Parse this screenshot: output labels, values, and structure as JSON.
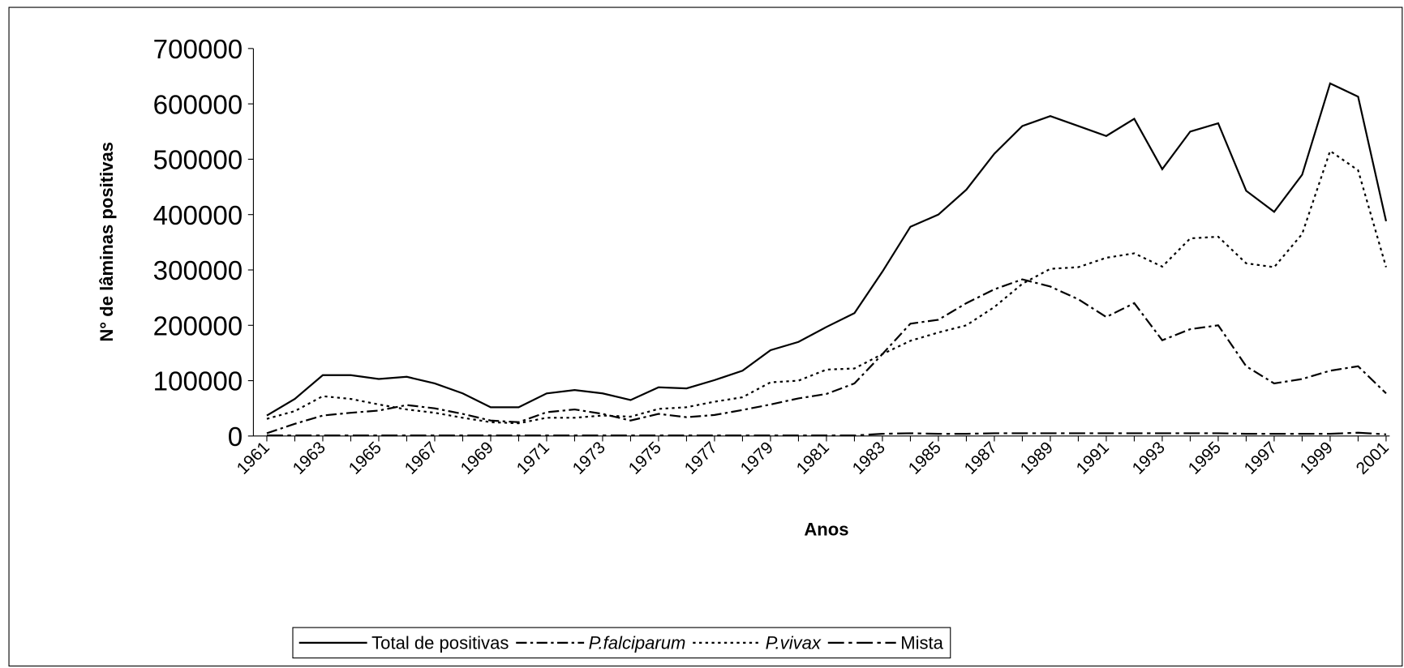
{
  "chart_data": {
    "type": "line",
    "x_label": "Anos",
    "y_label": "N° de lâminas positivas",
    "categories": [
      "1961",
      null,
      "1963",
      null,
      "1965",
      null,
      "1967",
      null,
      "1969",
      null,
      "1971",
      null,
      "1973",
      null,
      "1975",
      null,
      "1977",
      null,
      "1979",
      null,
      "1981",
      null,
      "1983",
      null,
      "1985",
      null,
      "1987",
      null,
      "1989",
      null,
      "1991",
      null,
      "1993",
      null,
      "1995",
      null,
      "1997",
      null,
      "1999",
      null,
      "2001"
    ],
    "series": [
      {
        "name": "Total de positivas",
        "color": "#000000",
        "line_style": "solid",
        "values": [
          37000,
          67000,
          110000,
          110000,
          103000,
          107000,
          95000,
          77000,
          52000,
          52000,
          77000,
          83000,
          77000,
          65000,
          88000,
          86000,
          101000,
          118000,
          155000,
          170000,
          197000,
          222000,
          297000,
          378000,
          400000,
          445000,
          510000,
          560000,
          578000,
          560000,
          542000,
          573000,
          482000,
          550000,
          565000,
          443000,
          405000,
          472000,
          637000,
          613000,
          388000
        ]
      },
      {
        "name": "P.falciparum",
        "color": "#000000",
        "line_style": "dashdot",
        "values": [
          5000,
          22000,
          37000,
          42000,
          46000,
          56000,
          50000,
          40000,
          28000,
          25000,
          43000,
          48000,
          40000,
          28000,
          40000,
          34000,
          38000,
          47000,
          57000,
          68000,
          76000,
          95000,
          148000,
          203000,
          210000,
          240000,
          265000,
          283000,
          270000,
          247000,
          215000,
          240000,
          173000,
          193000,
          200000,
          126000,
          95000,
          103000,
          118000,
          126000,
          77000
        ]
      },
      {
        "name": "P.vivax",
        "color": "#000000",
        "line_style": "dotted",
        "values": [
          31000,
          45000,
          72000,
          67000,
          57000,
          48000,
          42000,
          33000,
          25000,
          23000,
          33000,
          33000,
          37000,
          35000,
          49000,
          52000,
          62000,
          70000,
          97000,
          100000,
          120000,
          122000,
          148000,
          172000,
          187000,
          200000,
          233000,
          275000,
          302000,
          305000,
          322000,
          330000,
          306000,
          357000,
          360000,
          312000,
          305000,
          365000,
          515000,
          480000,
          305000
        ]
      },
      {
        "name": "Mista",
        "color": "#000000",
        "line_style": "longdashdot",
        "values": [
          1000,
          1000,
          1000,
          1000,
          1000,
          1000,
          1000,
          1000,
          1000,
          1000,
          1000,
          1000,
          1000,
          1000,
          1000,
          1000,
          1000,
          1000,
          1000,
          1000,
          1000,
          1000,
          4000,
          5000,
          4000,
          4000,
          5000,
          5000,
          5000,
          5000,
          5000,
          5000,
          5000,
          5000,
          5000,
          4000,
          4000,
          4000,
          4000,
          6000,
          3000
        ]
      }
    ],
    "ylim": [
      0,
      700000
    ],
    "yticks": [
      0,
      100000,
      200000,
      300000,
      400000,
      500000,
      600000,
      700000
    ],
    "legend": "bottom"
  }
}
